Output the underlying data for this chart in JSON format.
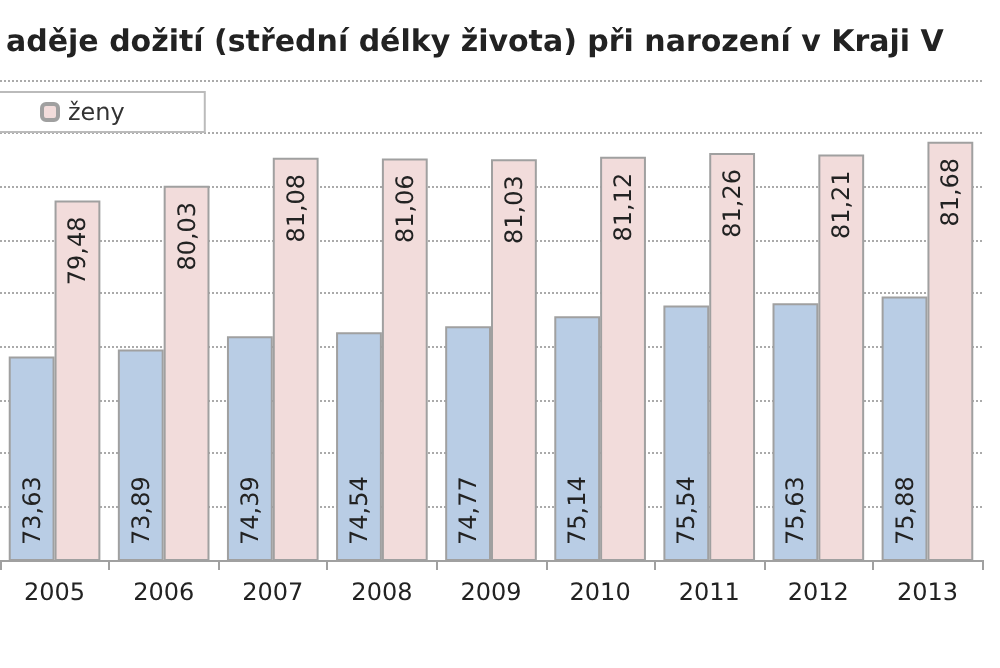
{
  "chart_data": {
    "type": "bar",
    "title": "aděje dožití (střední délky života) při narození v Kraji V",
    "categories": [
      "2005",
      "2006",
      "2007",
      "2008",
      "2009",
      "2010",
      "2011",
      "2012",
      "2013"
    ],
    "series": [
      {
        "color": "#b9cde5",
        "values": [
          73.63,
          73.89,
          74.39,
          74.54,
          74.77,
          75.14,
          75.54,
          75.63,
          75.88
        ],
        "value_labels": [
          "73,63",
          "73,89",
          "74,39",
          "74,54",
          "74,77",
          "75,14",
          "75,54",
          "75,63",
          "75,88"
        ]
      },
      {
        "name": "ženy",
        "color": "#f2dcdb",
        "values": [
          79.48,
          80.03,
          81.08,
          81.06,
          81.03,
          81.12,
          81.26,
          81.21,
          81.68
        ],
        "value_labels": [
          "79,48",
          "80,03",
          "81,08",
          "81,06",
          "81,03",
          "81,12",
          "81,26",
          "81,21",
          "81,68"
        ]
      }
    ],
    "ylim": [
      66,
      84
    ],
    "yticks": [
      {
        "value": 66,
        "label": null
      },
      {
        "value": 68,
        "label": null
      },
      {
        "value": 70,
        "label": null
      },
      {
        "value": 72,
        "label": null
      },
      {
        "value": 74,
        "label": null
      },
      {
        "value": 76,
        "label": null
      },
      {
        "value": 78,
        "label": null
      },
      {
        "value": 80,
        "label": null
      },
      {
        "value": 82,
        "label": null
      },
      {
        "value": 84,
        "label": null
      }
    ],
    "grid": "y",
    "legend": "top left",
    "tick_labels": "x"
  }
}
